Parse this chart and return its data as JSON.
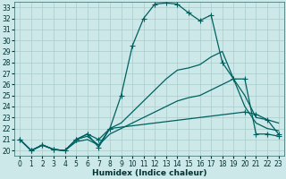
{
  "xlabel": "Humidex (Indice chaleur)",
  "xlim": [
    -0.5,
    23.5
  ],
  "ylim": [
    19.5,
    33.5
  ],
  "yticks": [
    20,
    21,
    22,
    23,
    24,
    25,
    26,
    27,
    28,
    29,
    30,
    31,
    32,
    33
  ],
  "xticks": [
    0,
    1,
    2,
    3,
    4,
    5,
    6,
    7,
    8,
    9,
    10,
    11,
    12,
    13,
    14,
    15,
    16,
    17,
    18,
    19,
    20,
    21,
    22,
    23
  ],
  "bg_color": "#cce8e8",
  "grid_color": "#aacccc",
  "line_color": "#006060",
  "lines": [
    {
      "x": [
        0,
        1,
        2,
        3,
        4,
        5,
        6,
        7,
        8,
        9,
        10,
        11,
        12,
        13,
        14,
        15,
        16,
        17,
        18,
        19,
        20,
        21,
        22,
        23
      ],
      "y": [
        21.0,
        20.0,
        20.5,
        20.1,
        20.0,
        21.0,
        21.5,
        21.0,
        22.0,
        25.0,
        29.5,
        32.0,
        33.3,
        33.4,
        33.3,
        32.5,
        31.8,
        32.3,
        28.0,
        26.5,
        26.5,
        21.5,
        21.5,
        21.3
      ],
      "marker": "+",
      "marker_size": 4,
      "lw": 0.9
    },
    {
      "x": [
        0,
        1,
        2,
        3,
        4,
        5,
        6,
        7,
        8,
        9,
        10,
        11,
        12,
        13,
        14,
        15,
        16,
        17,
        18,
        19,
        20,
        21,
        22,
        23
      ],
      "y": [
        21.0,
        20.0,
        20.5,
        20.1,
        20.0,
        21.0,
        21.3,
        20.5,
        22.0,
        22.5,
        23.5,
        24.5,
        25.5,
        26.5,
        27.3,
        27.5,
        27.8,
        28.5,
        29.0,
        26.5,
        25.0,
        23.0,
        22.8,
        22.5
      ],
      "marker": null,
      "marker_size": 0,
      "lw": 0.9
    },
    {
      "x": [
        0,
        1,
        2,
        3,
        4,
        5,
        6,
        7,
        8,
        9,
        10,
        11,
        12,
        13,
        14,
        15,
        16,
        17,
        18,
        19,
        20,
        21,
        22,
        23
      ],
      "y": [
        21.0,
        20.0,
        20.5,
        20.1,
        20.0,
        20.8,
        21.0,
        20.5,
        21.5,
        22.0,
        22.5,
        23.0,
        23.5,
        24.0,
        24.5,
        24.8,
        25.0,
        25.5,
        26.0,
        26.5,
        24.0,
        22.5,
        22.0,
        21.8
      ],
      "marker": null,
      "marker_size": 0,
      "lw": 0.9
    },
    {
      "x": [
        0,
        1,
        2,
        3,
        4,
        5,
        6,
        7,
        8,
        20,
        21,
        22,
        23
      ],
      "y": [
        21.0,
        20.0,
        20.5,
        20.1,
        20.0,
        21.0,
        21.5,
        20.3,
        22.0,
        23.5,
        23.3,
        22.8,
        21.5
      ],
      "marker": "+",
      "marker_size": 4,
      "lw": 0.9
    }
  ],
  "tick_fontsize": 5.5,
  "label_fontsize": 6.5
}
